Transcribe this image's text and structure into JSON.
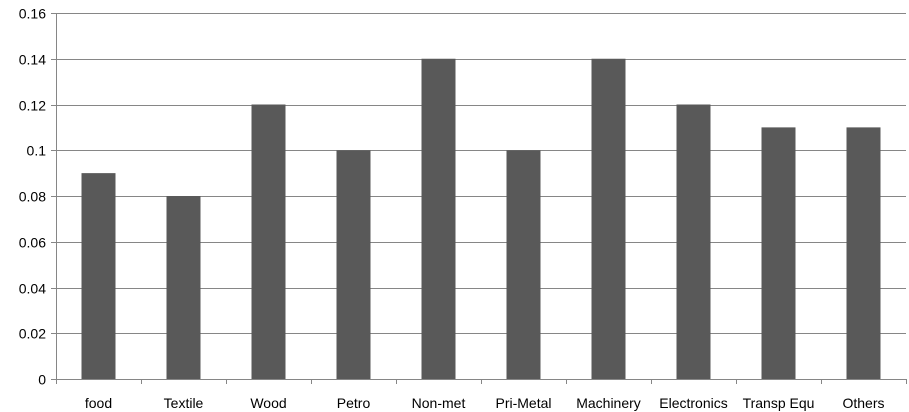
{
  "chart_data": {
    "type": "bar",
    "categories": [
      "food",
      "Textile",
      "Wood",
      "Petro",
      "Non-met",
      "Pri-Metal",
      "Machinery",
      "Electronics",
      "Transp Equ",
      "Others"
    ],
    "values": [
      0.09,
      0.08,
      0.12,
      0.1,
      0.14,
      0.1,
      0.14,
      0.12,
      0.11,
      0.11
    ],
    "ylim": [
      0,
      0.16
    ],
    "yticks": [
      0,
      0.02,
      0.04,
      0.06,
      0.08,
      0.1,
      0.12,
      0.14,
      0.16
    ],
    "ytick_labels": [
      "0",
      "0.02",
      "0.04",
      "0.06",
      "0.08",
      "0.1",
      "0.12",
      "0.14",
      "0.16"
    ],
    "grid": true,
    "legend": "none",
    "title": "",
    "xlabel": "",
    "ylabel": "",
    "colors": {
      "bar": "#595959",
      "grid": "#868686",
      "axis": "#868686"
    }
  }
}
